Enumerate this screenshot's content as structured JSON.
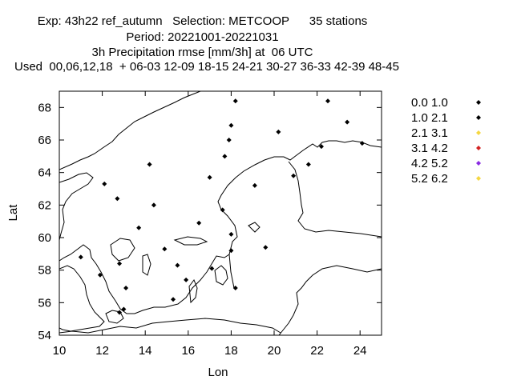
{
  "title": {
    "line1": "Exp: 43h22 ref_autumn   Selection: METCOOP      35 stations",
    "line2": "Period: 20221001-20221031",
    "line3": "3h Precipitation rmse [mm/3h] at  06 UTC",
    "line4": "Used  00,06,12,18  + 06-03 12-09 18-15 24-21 30-27 36-33 42-39 48-45"
  },
  "chart_data": {
    "type": "scatter",
    "xlabel": "Lon",
    "ylabel": "Lat",
    "xlim": [
      10,
      25
    ],
    "ylim": [
      54,
      69
    ],
    "xticks": [
      10,
      12,
      14,
      16,
      18,
      20,
      22,
      24
    ],
    "yticks": [
      54,
      56,
      58,
      60,
      62,
      64,
      66,
      68
    ],
    "legend_position": "right",
    "legend": [
      {
        "label": "0.0 1.0",
        "color": "#000000"
      },
      {
        "label": "1.0 2.1",
        "color": "#000000"
      },
      {
        "label": "2.1 3.1",
        "color": "#f5d742"
      },
      {
        "label": "3.1 4.2",
        "color": "#d32222"
      },
      {
        "label": "4.2 5.2",
        "color": "#8a2be2"
      },
      {
        "label": "5.2 6.2",
        "color": "#f5d742"
      }
    ],
    "points": [
      {
        "lon": 18.2,
        "lat": 68.4
      },
      {
        "lon": 22.5,
        "lat": 68.4
      },
      {
        "lon": 23.4,
        "lat": 67.1
      },
      {
        "lon": 18.0,
        "lat": 66.9
      },
      {
        "lon": 20.2,
        "lat": 66.5
      },
      {
        "lon": 17.9,
        "lat": 66.0
      },
      {
        "lon": 24.1,
        "lat": 65.8
      },
      {
        "lon": 22.2,
        "lat": 65.6
      },
      {
        "lon": 17.7,
        "lat": 65.0
      },
      {
        "lon": 14.2,
        "lat": 64.5
      },
      {
        "lon": 21.6,
        "lat": 64.5
      },
      {
        "lon": 20.9,
        "lat": 63.8
      },
      {
        "lon": 17.0,
        "lat": 63.7
      },
      {
        "lon": 12.1,
        "lat": 63.3
      },
      {
        "lon": 19.1,
        "lat": 63.2
      },
      {
        "lon": 12.7,
        "lat": 62.4
      },
      {
        "lon": 14.4,
        "lat": 62.0
      },
      {
        "lon": 17.6,
        "lat": 61.7
      },
      {
        "lon": 16.5,
        "lat": 60.9
      },
      {
        "lon": 13.7,
        "lat": 60.6
      },
      {
        "lon": 18.0,
        "lat": 60.2
      },
      {
        "lon": 19.6,
        "lat": 59.4
      },
      {
        "lon": 14.9,
        "lat": 59.3
      },
      {
        "lon": 18.0,
        "lat": 59.2
      },
      {
        "lon": 11.0,
        "lat": 58.8
      },
      {
        "lon": 12.8,
        "lat": 58.4
      },
      {
        "lon": 15.5,
        "lat": 58.3
      },
      {
        "lon": 17.1,
        "lat": 58.1
      },
      {
        "lon": 11.9,
        "lat": 57.7
      },
      {
        "lon": 15.9,
        "lat": 57.4
      },
      {
        "lon": 13.1,
        "lat": 56.9
      },
      {
        "lon": 18.2,
        "lat": 56.9
      },
      {
        "lon": 15.3,
        "lat": 56.2
      },
      {
        "lon": 13.0,
        "lat": 55.6
      },
      {
        "lon": 12.8,
        "lat": 55.4
      }
    ]
  }
}
